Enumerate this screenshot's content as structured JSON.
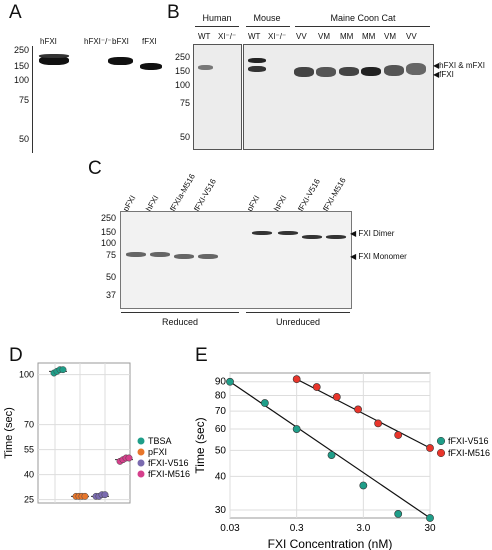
{
  "panelA": {
    "label": "A",
    "lanes": [
      "hFXI",
      "hFXI⁻/⁻",
      "bFXI",
      "fFXI"
    ],
    "mw": [
      "250",
      "150",
      "100",
      "75",
      "50"
    ]
  },
  "panelB": {
    "label": "B",
    "groups": [
      "Human",
      "Mouse",
      "Maine Coon Cat"
    ],
    "lanes": [
      "WT",
      "XI⁻/⁻",
      "WT",
      "XI⁻/⁻",
      "VV",
      "VM",
      "MM",
      "MM",
      "VM",
      "VV"
    ],
    "mw": [
      "250",
      "150",
      "100",
      "75",
      "50"
    ],
    "markers": [
      "hFXI & mFXI",
      "fFXI"
    ]
  },
  "panelC": {
    "label": "C",
    "lanes": [
      "pFXI",
      "hFXI",
      "fFXIa-M516",
      "fFXI-V516",
      "pFXI",
      "hFXI",
      "fFXI-V516",
      "fFXI-M516"
    ],
    "mw": [
      "250",
      "150",
      "100",
      "75",
      "50",
      "37"
    ],
    "markers": [
      "FXI Dimer",
      "FXI Monomer"
    ],
    "groups": [
      "Reduced",
      "Unreduced"
    ]
  },
  "panelD": {
    "label": "D",
    "ylabel": "Time (sec)",
    "yticks": [
      "100",
      "70",
      "55",
      "40",
      "25"
    ],
    "legend": [
      {
        "name": "TBSA",
        "color": "#1f9e89"
      },
      {
        "name": "pFXI",
        "color": "#e8762b"
      },
      {
        "name": "fFXI-V516",
        "color": "#7a6bb0"
      },
      {
        "name": "fFXI-M516",
        "color": "#d63f8c"
      }
    ]
  },
  "panelE": {
    "label": "E",
    "ylabel": "Time (sec)",
    "xlabel": "FXI Concentration (nM)",
    "xticks": [
      "0.03",
      "0.3",
      "3.0",
      "30"
    ],
    "yticks": [
      "90",
      "80",
      "70",
      "60",
      "50",
      "40",
      "30"
    ],
    "legend": [
      {
        "name": "fFXI-V516",
        "color": "#1f9e89"
      },
      {
        "name": "fFXI-M516",
        "color": "#e8352b"
      }
    ]
  },
  "chart_data": [
    {
      "type": "scatter",
      "panel": "D",
      "ylabel": "Time (sec)",
      "ylim": [
        23,
        107
      ],
      "series": [
        {
          "name": "TBSA",
          "values": [
            101,
            102,
            103,
            103
          ]
        },
        {
          "name": "pFXI",
          "values": [
            27,
            27,
            27,
            27
          ]
        },
        {
          "name": "fFXI-V516",
          "values": [
            27,
            27,
            28,
            28
          ]
        },
        {
          "name": "fFXI-M516",
          "values": [
            48,
            49,
            50,
            50
          ]
        }
      ]
    },
    {
      "type": "scatter",
      "panel": "E",
      "xlabel": "FXI Concentration (nM)",
      "ylabel": "Time (sec)",
      "xscale": "log",
      "yscale": "log",
      "xlim": [
        0.03,
        30
      ],
      "ylim": [
        28,
        97
      ],
      "series": [
        {
          "name": "fFXI-V516",
          "x": [
            0.03,
            0.1,
            0.3,
            1,
            3,
            10,
            30
          ],
          "y": [
            90,
            75,
            60,
            48,
            37,
            29,
            28
          ]
        },
        {
          "name": "fFXI-M516",
          "x": [
            0.3,
            0.6,
            1.2,
            2.5,
            5,
            10,
            30
          ],
          "y": [
            92,
            86,
            79,
            71,
            63,
            57,
            51
          ]
        }
      ]
    }
  ]
}
